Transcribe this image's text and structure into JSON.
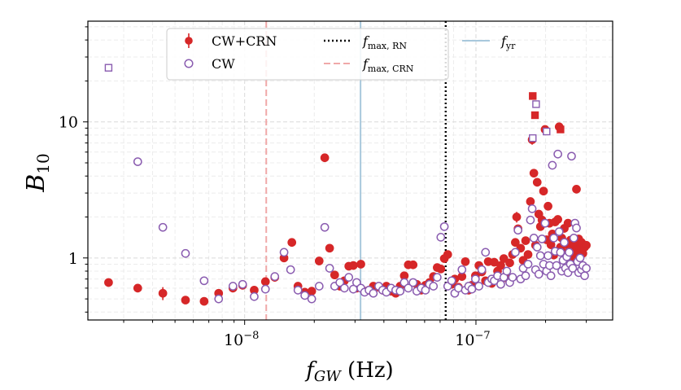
{
  "chart_data": {
    "type": "scatter",
    "xlabel": "f_GW (Hz)",
    "ylabel": "B10",
    "xscale": "log",
    "yscale": "log",
    "xlim": [
      2.1e-09,
      3.9e-07
    ],
    "ylim": [
      0.35,
      55
    ],
    "grid": true,
    "legend_position": "top",
    "x_ticks": [
      {
        "value": 1e-08,
        "label": "10",
        "exp": "−8"
      },
      {
        "value": 1e-07,
        "label": "10",
        "exp": "−7"
      }
    ],
    "y_ticks": [
      {
        "value": 1,
        "label": "1"
      },
      {
        "value": 10,
        "label": "10"
      }
    ],
    "vlines": [
      {
        "name": "f_max, RN",
        "x": 7.4e-08,
        "color": "#000000",
        "style": "dotted"
      },
      {
        "name": "f_max, CRN",
        "x": 1.24e-08,
        "color": "#f0a8a8",
        "style": "dashed"
      },
      {
        "name": "f_yr",
        "x": 3.17e-08,
        "color": "#a8c8dc",
        "style": "solid"
      }
    ],
    "legend": [
      {
        "label": "CW+CRN",
        "marker": "errorbar-circle",
        "color": "#d62728"
      },
      {
        "label": "CW",
        "marker": "open-circle",
        "color": "#8a5cb0"
      },
      {
        "label": "f",
        "sub": "max, RN",
        "marker": "dotted",
        "color": "#000000"
      },
      {
        "label": "f",
        "sub": "max, CRN",
        "marker": "dashed",
        "color": "#f0a8a8"
      },
      {
        "label": "f",
        "sub": "yr",
        "marker": "line",
        "color": "#a8c8dc"
      }
    ],
    "series": [
      {
        "name": "CW+CRN",
        "color": "#d62728",
        "filled": true,
        "points": [
          [
            2.58e-09,
            0.66,
            0
          ],
          [
            3.45e-09,
            0.6,
            0
          ],
          [
            4.43e-09,
            0.55,
            0.06
          ],
          [
            5.55e-09,
            0.49,
            0
          ],
          [
            6.68e-09,
            0.48,
            0
          ],
          [
            7.72e-09,
            0.55,
            0
          ],
          [
            8.9e-09,
            0.6,
            0
          ],
          [
            9.8e-09,
            0.63,
            0
          ],
          [
            1.1e-08,
            0.58,
            0
          ],
          [
            1.23e-08,
            0.67,
            0
          ],
          [
            1.35e-08,
            0.72,
            0
          ],
          [
            1.48e-08,
            1.0,
            0
          ],
          [
            1.6e-08,
            1.3,
            0
          ],
          [
            1.7e-08,
            0.62,
            0
          ],
          [
            1.82e-08,
            0.56,
            0
          ],
          [
            1.95e-08,
            0.57,
            0
          ],
          [
            2.1e-08,
            0.95,
            0
          ],
          [
            2.22e-08,
            5.45,
            0
          ],
          [
            2.33e-08,
            1.18,
            0
          ],
          [
            2.45e-08,
            0.75,
            0
          ],
          [
            2.58e-08,
            0.62,
            0
          ],
          [
            2.7e-08,
            0.68,
            0
          ],
          [
            2.82e-08,
            0.87,
            0
          ],
          [
            2.95e-08,
            0.88,
            0
          ],
          [
            3.05e-08,
            0.6,
            0
          ],
          [
            3.18e-08,
            0.9,
            0
          ],
          [
            3.3e-08,
            0.57,
            0
          ],
          [
            3.45e-08,
            0.58,
            0
          ],
          [
            3.6e-08,
            0.62,
            0
          ],
          [
            3.8e-08,
            0.61,
            0
          ],
          [
            3.95e-08,
            0.58,
            0
          ],
          [
            4.1e-08,
            0.62,
            0
          ],
          [
            4.3e-08,
            0.57,
            0
          ],
          [
            4.5e-08,
            0.55,
            0
          ],
          [
            4.7e-08,
            0.62,
            0
          ],
          [
            4.9e-08,
            0.74,
            0
          ],
          [
            5.1e-08,
            0.89,
            0
          ],
          [
            5.35e-08,
            0.89,
            0
          ],
          [
            5.55e-08,
            0.64,
            0
          ],
          [
            5.8e-08,
            0.58,
            0
          ],
          [
            6.05e-08,
            0.63,
            0
          ],
          [
            6.3e-08,
            0.66,
            0
          ],
          [
            6.55e-08,
            0.73,
            0
          ],
          [
            6.8e-08,
            0.85,
            0
          ],
          [
            7.05e-08,
            0.83,
            0
          ],
          [
            7.3e-08,
            0.99,
            0
          ],
          [
            7.55e-08,
            1.06,
            0
          ],
          [
            7.85e-08,
            0.64,
            0
          ],
          [
            8.1e-08,
            0.7,
            0
          ],
          [
            8.4e-08,
            0.61,
            0
          ],
          [
            8.7e-08,
            0.73,
            0
          ],
          [
            9e-08,
            0.94,
            0
          ],
          [
            9.3e-08,
            0.58,
            0
          ],
          [
            9.6e-08,
            0.63,
            0
          ],
          [
            9.95e-08,
            0.74,
            0
          ],
          [
            1.03e-07,
            0.88,
            0
          ],
          [
            1.06e-07,
            0.79,
            0
          ],
          [
            1.1e-07,
            0.68,
            0
          ],
          [
            1.13e-07,
            0.94,
            0
          ],
          [
            1.17e-07,
            0.65,
            0
          ],
          [
            1.2e-07,
            0.93,
            0
          ],
          [
            1.24e-07,
            0.8,
            0
          ],
          [
            1.28e-07,
            0.88,
            0
          ],
          [
            1.32e-07,
            0.99,
            0
          ],
          [
            1.36e-07,
            0.71,
            0
          ],
          [
            1.4e-07,
            0.92,
            0
          ],
          [
            1.44e-07,
            1.06,
            0
          ],
          [
            1.48e-07,
            1.3,
            0
          ],
          [
            1.5e-07,
            2.0,
            0.18
          ],
          [
            1.52e-07,
            1.64,
            0
          ],
          [
            1.56e-07,
            1.18,
            0
          ],
          [
            1.6e-07,
            0.96,
            0
          ],
          [
            1.64e-07,
            1.34,
            0
          ],
          [
            1.68e-07,
            1.06,
            0
          ],
          [
            1.72e-07,
            2.6,
            0
          ],
          [
            1.75e-07,
            7.4,
            0.6
          ],
          [
            1.78e-07,
            4.2,
            0
          ],
          [
            1.81e-07,
            1.24,
            0
          ],
          [
            1.84e-07,
            3.6,
            0
          ],
          [
            1.87e-07,
            2.1,
            0
          ],
          [
            1.9e-07,
            1.7,
            0
          ],
          [
            1.93e-07,
            1.9,
            0
          ],
          [
            1.96e-07,
            3.1,
            0
          ],
          [
            1.99e-07,
            8.8,
            0
          ],
          [
            2.02e-07,
            1.36,
            0
          ],
          [
            2.05e-07,
            2.4,
            0
          ],
          [
            2.08e-07,
            1.8,
            0
          ],
          [
            2.11e-07,
            1.25,
            0
          ],
          [
            2.14e-07,
            1.5,
            0
          ],
          [
            2.17e-07,
            1.05,
            0
          ],
          [
            2.2e-07,
            1.84,
            0
          ],
          [
            2.23e-07,
            1.12,
            0
          ],
          [
            2.26e-07,
            1.92,
            0
          ],
          [
            2.29e-07,
            9.2,
            0
          ],
          [
            2.32e-07,
            1.2,
            0
          ],
          [
            2.35e-07,
            1.4,
            0
          ],
          [
            2.38e-07,
            1.1,
            0
          ],
          [
            2.41e-07,
            1.65,
            0
          ],
          [
            2.44e-07,
            1.06,
            0
          ],
          [
            2.47e-07,
            1.26,
            0
          ],
          [
            2.5e-07,
            1.8,
            0
          ],
          [
            2.53e-07,
            1.12,
            0
          ],
          [
            2.56e-07,
            1.35,
            0
          ],
          [
            2.59e-07,
            0.96,
            0
          ],
          [
            2.62e-07,
            1.17,
            0
          ],
          [
            2.65e-07,
            1.04,
            0
          ],
          [
            2.68e-07,
            1.25,
            0
          ],
          [
            2.72e-07,
            3.2,
            0.18
          ],
          [
            2.75e-07,
            1.08,
            0
          ],
          [
            2.78e-07,
            1.38,
            0
          ],
          [
            2.82e-07,
            1.18,
            0
          ],
          [
            2.86e-07,
            1.3,
            0
          ],
          [
            2.9e-07,
            1.08,
            0
          ],
          [
            2.95e-07,
            1.2,
            0
          ],
          [
            3e-07,
            1.24,
            0
          ]
        ],
        "squares": [
          [
            1.76e-07,
            15.5
          ],
          [
            1.8e-07,
            11.2
          ],
          [
            2.32e-07,
            8.8
          ]
        ]
      },
      {
        "name": "CW",
        "color": "#8a5cb0",
        "filled": false,
        "points": [
          [
            3.45e-09,
            5.1
          ],
          [
            4.43e-09,
            1.68
          ],
          [
            5.55e-09,
            1.08
          ],
          [
            6.68e-09,
            0.68
          ],
          [
            7.72e-09,
            0.5
          ],
          [
            8.9e-09,
            0.62
          ],
          [
            9.8e-09,
            0.64
          ],
          [
            1.1e-08,
            0.52
          ],
          [
            1.23e-08,
            0.59
          ],
          [
            1.35e-08,
            0.73
          ],
          [
            1.48e-08,
            1.1
          ],
          [
            1.58e-08,
            0.82
          ],
          [
            1.7e-08,
            0.58
          ],
          [
            1.82e-08,
            0.53
          ],
          [
            1.95e-08,
            0.5
          ],
          [
            2.1e-08,
            0.62
          ],
          [
            2.22e-08,
            1.68
          ],
          [
            2.33e-08,
            0.84
          ],
          [
            2.45e-08,
            0.62
          ],
          [
            2.58e-08,
            0.66
          ],
          [
            2.7e-08,
            0.6
          ],
          [
            2.82e-08,
            0.72
          ],
          [
            2.95e-08,
            0.59
          ],
          [
            3.05e-08,
            0.66
          ],
          [
            3.18e-08,
            0.6
          ],
          [
            3.3e-08,
            0.56
          ],
          [
            3.45e-08,
            0.58
          ],
          [
            3.6e-08,
            0.55
          ],
          [
            3.8e-08,
            0.62
          ],
          [
            3.95e-08,
            0.58
          ],
          [
            4.1e-08,
            0.56
          ],
          [
            4.3e-08,
            0.6
          ],
          [
            4.5e-08,
            0.58
          ],
          [
            4.7e-08,
            0.57
          ],
          [
            4.9e-08,
            0.66
          ],
          [
            5.1e-08,
            0.6
          ],
          [
            5.35e-08,
            0.66
          ],
          [
            5.55e-08,
            0.57
          ],
          [
            5.8e-08,
            0.6
          ],
          [
            6.05e-08,
            0.58
          ],
          [
            6.3e-08,
            0.64
          ],
          [
            6.55e-08,
            0.62
          ],
          [
            6.8e-08,
            0.72
          ],
          [
            7.05e-08,
            1.42
          ],
          [
            7.3e-08,
            1.7
          ],
          [
            7.55e-08,
            0.62
          ],
          [
            7.85e-08,
            0.68
          ],
          [
            8.1e-08,
            0.55
          ],
          [
            8.4e-08,
            0.6
          ],
          [
            8.7e-08,
            0.82
          ],
          [
            9e-08,
            0.58
          ],
          [
            9.3e-08,
            0.62
          ],
          [
            9.6e-08,
            0.59
          ],
          [
            9.95e-08,
            0.7
          ],
          [
            1.03e-07,
            0.62
          ],
          [
            1.06e-07,
            0.82
          ],
          [
            1.1e-07,
            1.1
          ],
          [
            1.13e-07,
            0.66
          ],
          [
            1.17e-07,
            0.7
          ],
          [
            1.2e-07,
            0.68
          ],
          [
            1.24e-07,
            0.74
          ],
          [
            1.28e-07,
            0.64
          ],
          [
            1.32e-07,
            0.72
          ],
          [
            1.36e-07,
            0.8
          ],
          [
            1.4e-07,
            0.66
          ],
          [
            1.44e-07,
            0.72
          ],
          [
            1.48e-07,
            1.1
          ],
          [
            1.52e-07,
            1.6
          ],
          [
            1.56e-07,
            0.7
          ],
          [
            1.6e-07,
            0.84
          ],
          [
            1.64e-07,
            0.74
          ],
          [
            1.68e-07,
            0.9
          ],
          [
            1.72e-07,
            1.9
          ],
          [
            1.75e-07,
            2.3
          ],
          [
            1.78e-07,
            1.4
          ],
          [
            1.81e-07,
            0.82
          ],
          [
            1.84e-07,
            1.2
          ],
          [
            1.87e-07,
            0.76
          ],
          [
            1.9e-07,
            1.04
          ],
          [
            1.93e-07,
            1.38
          ],
          [
            1.96e-07,
            0.9
          ],
          [
            1.99e-07,
            1.8
          ],
          [
            2.02e-07,
            0.8
          ],
          [
            2.05e-07,
            1.04
          ],
          [
            2.08e-07,
            0.88
          ],
          [
            2.11e-07,
            0.74
          ],
          [
            2.14e-07,
            4.8
          ],
          [
            2.17e-07,
            1.4
          ],
          [
            2.2e-07,
            1.12
          ],
          [
            2.23e-07,
            0.88
          ],
          [
            2.26e-07,
            5.8
          ],
          [
            2.29e-07,
            1.56
          ],
          [
            2.32e-07,
            1.1
          ],
          [
            2.35e-07,
            0.8
          ],
          [
            2.38e-07,
            0.96
          ],
          [
            2.41e-07,
            1.3
          ],
          [
            2.44e-07,
            0.84
          ],
          [
            2.47e-07,
            1.02
          ],
          [
            2.5e-07,
            0.78
          ],
          [
            2.53e-07,
            1.1
          ],
          [
            2.56e-07,
            0.9
          ],
          [
            2.59e-07,
            5.6
          ],
          [
            2.62e-07,
            0.84
          ],
          [
            2.65e-07,
            1.4
          ],
          [
            2.68e-07,
            1.8
          ],
          [
            2.72e-07,
            1.66
          ],
          [
            2.75e-07,
            0.94
          ],
          [
            2.78e-07,
            0.78
          ],
          [
            2.82e-07,
            1.0
          ],
          [
            2.86e-07,
            0.82
          ],
          [
            2.9e-07,
            0.88
          ],
          [
            2.95e-07,
            0.74
          ],
          [
            3e-07,
            0.84
          ]
        ],
        "squares": [
          [
            2.58e-09,
            25.0
          ],
          [
            1.76e-07,
            7.6
          ],
          [
            1.82e-07,
            13.5
          ],
          [
            2.02e-07,
            8.5
          ]
        ]
      }
    ]
  }
}
